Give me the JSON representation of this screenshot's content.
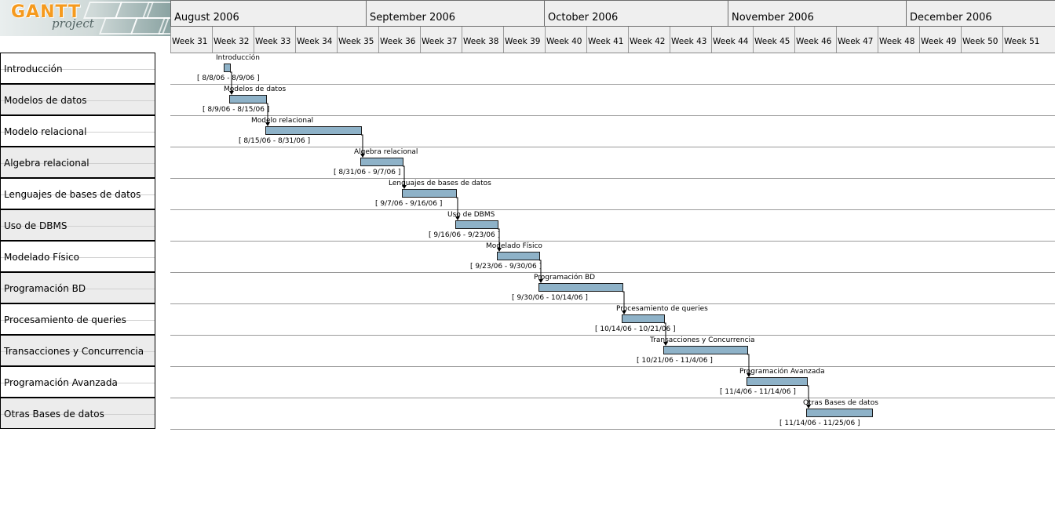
{
  "logo": {
    "word": "GANTT",
    "sub": "project"
  },
  "months": [
    "August 2006",
    "September 2006",
    "October 2006",
    "November 2006",
    "December 2006"
  ],
  "weeks": [
    "Week 31",
    "Week 32",
    "Week 33",
    "Week 34",
    "Week 35",
    "Week 36",
    "Week 37",
    "Week 38",
    "Week 39",
    "Week 40",
    "Week 41",
    "Week 42",
    "Week 43",
    "Week 44",
    "Week 45",
    "Week 46",
    "Week 47",
    "Week 48",
    "Week 49",
    "Week 50",
    "Week 51"
  ],
  "tasks": [
    {
      "name": "Introducción",
      "dates": "[ 8/8/06 - 8/9/06 ]"
    },
    {
      "name": "Modelos de datos",
      "dates": "[ 8/9/06 - 8/15/06 ]"
    },
    {
      "name": "Modelo relacional",
      "dates": "[ 8/15/06 - 8/31/06 ]"
    },
    {
      "name": "Algebra relacional",
      "dates": "[ 8/31/06 - 9/7/06 ]"
    },
    {
      "name": "Lenguajes de bases de datos",
      "dates": "[ 9/7/06 - 9/16/06 ]"
    },
    {
      "name": "Uso de DBMS",
      "dates": "[ 9/16/06 - 9/23/06 ]"
    },
    {
      "name": "Modelado Físico",
      "dates": "[ 9/23/06 - 9/30/06 ]"
    },
    {
      "name": "Programación BD",
      "dates": "[ 9/30/06 - 10/14/06 ]"
    },
    {
      "name": "Procesamiento de queries",
      "dates": "[ 10/14/06 - 10/21/06 ]"
    },
    {
      "name": "Transacciones y Concurrencia",
      "dates": "[ 10/21/06 - 11/4/06 ]"
    },
    {
      "name": "Programación Avanzada",
      "dates": "[ 11/4/06 - 11/14/06 ]"
    },
    {
      "name": "Otras Bases de datos",
      "dates": "[ 11/14/06 - 11/25/06 ]"
    }
  ],
  "colors": {
    "bar": "#8eb2c8",
    "header_bg": "#efefef",
    "row_alt": "#ececec",
    "logo_orange": "#f59a1e"
  }
}
